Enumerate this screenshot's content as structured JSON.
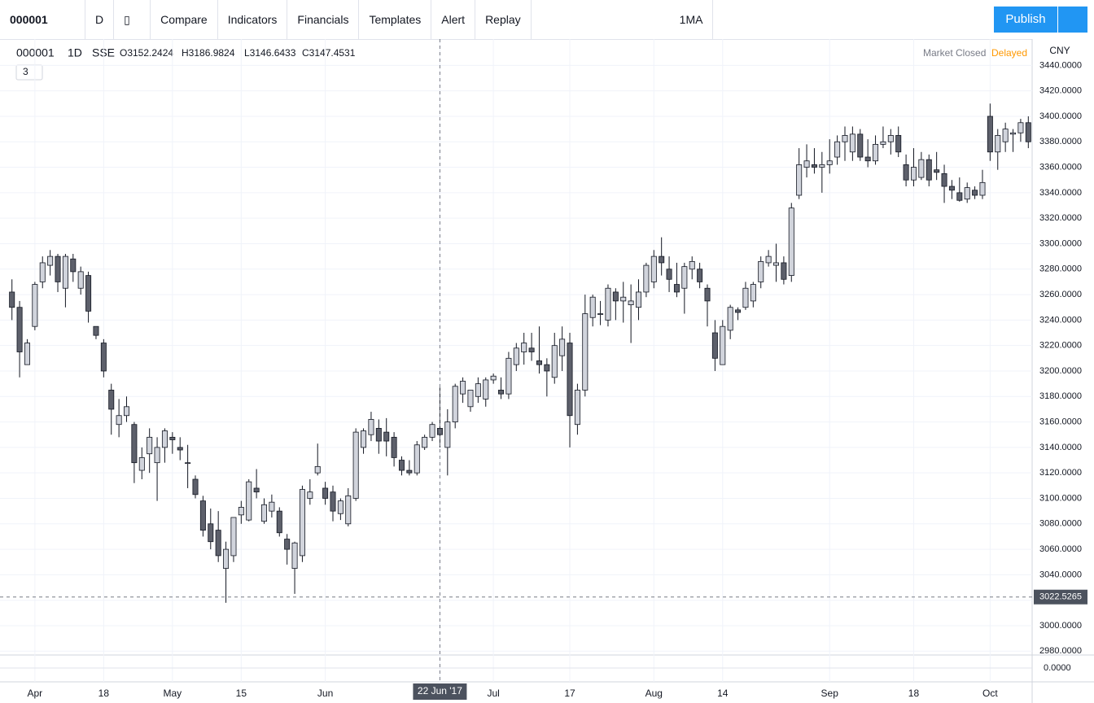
{
  "toolbar": {
    "symbol": "000001",
    "interval": "D",
    "compare": "Compare",
    "indicators": "Indicators",
    "financials": "Financials",
    "templates": "Templates",
    "alert": "Alert",
    "replay": "Replay",
    "layout": "1MA",
    "publish": "Publish"
  },
  "legend": {
    "symbol": "000001",
    "interval": "1D",
    "exchange": "SSE",
    "open": "O3152.2424",
    "high": "H3186.9824",
    "low": "L3146.6433",
    "close": "C3147.4531",
    "collapsed_count": "3",
    "status": "Market Closed",
    "delayed": "Delayed",
    "currency": "CNY"
  },
  "chart_data": {
    "type": "candlestick",
    "categories": [
      null,
      null,
      null,
      "Apr",
      null,
      null,
      null,
      null,
      null,
      null,
      null,
      null,
      "18",
      null,
      null,
      null,
      null,
      null,
      null,
      null,
      null,
      "May",
      null,
      null,
      null,
      null,
      null,
      null,
      null,
      null,
      "15",
      null,
      null,
      null,
      null,
      null,
      null,
      null,
      null,
      null,
      null,
      "Jun",
      null,
      null,
      null,
      null,
      null,
      null,
      null,
      null,
      null,
      null,
      null,
      null,
      null,
      null,
      "22 Jun '17",
      null,
      null,
      null,
      null,
      null,
      null,
      "Jul",
      null,
      null,
      null,
      null,
      null,
      null,
      null,
      null,
      null,
      "17",
      null,
      null,
      null,
      null,
      null,
      null,
      null,
      null,
      null,
      null,
      "Aug",
      null,
      null,
      null,
      null,
      null,
      null,
      null,
      null,
      "14",
      null,
      null,
      null,
      null,
      null,
      null,
      null,
      null,
      null,
      null,
      null,
      null,
      null,
      "Sep",
      null,
      null,
      null,
      null,
      null,
      null,
      null,
      null,
      null,
      null,
      "18",
      null,
      null,
      null,
      null,
      null,
      null,
      null,
      null,
      null,
      "Oct",
      null,
      null,
      null,
      null,
      null
    ],
    "ohlc": [
      [
        3262,
        3272,
        3240,
        3250
      ],
      [
        3250,
        3255,
        3195,
        3215
      ],
      [
        3205,
        3225,
        3205,
        3222
      ],
      [
        3235,
        3270,
        3232,
        3268
      ],
      [
        3270,
        3290,
        3265,
        3285
      ],
      [
        3283,
        3295,
        3275,
        3290
      ],
      [
        3290,
        3292,
        3262,
        3270
      ],
      [
        3265,
        3292,
        3250,
        3290
      ],
      [
        3288,
        3292,
        3270,
        3278
      ],
      [
        3265,
        3282,
        3260,
        3278
      ],
      [
        3275,
        3278,
        3238,
        3247
      ],
      [
        3235,
        3235,
        3225,
        3228
      ],
      [
        3222,
        3225,
        3195,
        3200
      ],
      [
        3185,
        3190,
        3150,
        3170
      ],
      [
        3158,
        3178,
        3148,
        3165
      ],
      [
        3165,
        3180,
        3160,
        3172
      ],
      [
        3158,
        3160,
        3112,
        3128
      ],
      [
        3122,
        3140,
        3115,
        3132
      ],
      [
        3135,
        3155,
        3120,
        3148
      ],
      [
        3128,
        3148,
        3098,
        3140
      ],
      [
        3140,
        3155,
        3128,
        3153
      ],
      [
        3148,
        3152,
        3135,
        3146
      ],
      [
        3140,
        3148,
        3130,
        3138
      ],
      [
        3128,
        3142,
        3108,
        3128
      ],
      [
        3115,
        3118,
        3100,
        3103
      ],
      [
        3098,
        3102,
        3070,
        3075
      ],
      [
        3080,
        3092,
        3060,
        3066
      ],
      [
        3075,
        3090,
        3050,
        3055
      ],
      [
        3045,
        3066,
        3018,
        3060
      ],
      [
        3055,
        3085,
        3050,
        3085
      ],
      [
        3087,
        3098,
        3080,
        3093
      ],
      [
        3083,
        3115,
        3082,
        3113
      ],
      [
        3108,
        3123,
        3100,
        3105
      ],
      [
        3082,
        3100,
        3080,
        3095
      ],
      [
        3090,
        3103,
        3085,
        3097
      ],
      [
        3090,
        3093,
        3070,
        3073
      ],
      [
        3068,
        3072,
        3048,
        3060
      ],
      [
        3045,
        3066,
        3025,
        3065
      ],
      [
        3055,
        3110,
        3050,
        3107
      ],
      [
        3100,
        3115,
        3095,
        3105
      ],
      [
        3120,
        3143,
        3118,
        3125
      ],
      [
        3108,
        3113,
        3095,
        3100
      ],
      [
        3105,
        3110,
        3082,
        3090
      ],
      [
        3088,
        3100,
        3083,
        3098
      ],
      [
        3080,
        3108,
        3078,
        3102
      ],
      [
        3100,
        3155,
        3098,
        3152
      ],
      [
        3140,
        3155,
        3135,
        3153
      ],
      [
        3150,
        3168,
        3145,
        3162
      ],
      [
        3155,
        3162,
        3135,
        3145
      ],
      [
        3152,
        3163,
        3133,
        3145
      ],
      [
        3148,
        3152,
        3125,
        3132
      ],
      [
        3130,
        3133,
        3118,
        3122
      ],
      [
        3122,
        3130,
        3118,
        3120
      ],
      [
        3120,
        3145,
        3118,
        3142
      ],
      [
        3140,
        3150,
        3138,
        3148
      ],
      [
        3148,
        3160,
        3145,
        3158
      ],
      [
        3155,
        3187,
        3140,
        3150
      ],
      [
        3140,
        3170,
        3118,
        3160
      ],
      [
        3160,
        3190,
        3155,
        3188
      ],
      [
        3182,
        3195,
        3175,
        3192
      ],
      [
        3172,
        3185,
        3168,
        3185
      ],
      [
        3180,
        3195,
        3175,
        3190
      ],
      [
        3178,
        3195,
        3172,
        3193
      ],
      [
        3193,
        3198,
        3190,
        3196
      ],
      [
        3185,
        3195,
        3178,
        3182
      ],
      [
        3182,
        3215,
        3178,
        3210
      ],
      [
        3205,
        3222,
        3200,
        3218
      ],
      [
        3215,
        3230,
        3205,
        3222
      ],
      [
        3218,
        3230,
        3208,
        3215
      ],
      [
        3208,
        3235,
        3198,
        3205
      ],
      [
        3205,
        3210,
        3180,
        3200
      ],
      [
        3195,
        3230,
        3190,
        3220
      ],
      [
        3212,
        3235,
        3200,
        3225
      ],
      [
        3222,
        3230,
        3140,
        3165
      ],
      [
        3158,
        3190,
        3150,
        3185
      ],
      [
        3185,
        3260,
        3180,
        3245
      ],
      [
        3242,
        3260,
        3235,
        3258
      ],
      [
        3245,
        3255,
        3236,
        3245
      ],
      [
        3240,
        3268,
        3235,
        3265
      ],
      [
        3262,
        3265,
        3240,
        3255
      ],
      [
        3255,
        3270,
        3238,
        3258
      ],
      [
        3252,
        3268,
        3222,
        3255
      ],
      [
        3250,
        3272,
        3240,
        3262
      ],
      [
        3262,
        3285,
        3258,
        3283
      ],
      [
        3270,
        3295,
        3265,
        3290
      ],
      [
        3290,
        3305,
        3275,
        3285
      ],
      [
        3280,
        3290,
        3262,
        3272
      ],
      [
        3268,
        3285,
        3258,
        3262
      ],
      [
        3265,
        3285,
        3245,
        3282
      ],
      [
        3280,
        3290,
        3272,
        3286
      ],
      [
        3280,
        3285,
        3265,
        3270
      ],
      [
        3265,
        3268,
        3235,
        3255
      ],
      [
        3230,
        3240,
        3200,
        3210
      ],
      [
        3205,
        3240,
        3205,
        3235
      ],
      [
        3232,
        3252,
        3225,
        3250
      ],
      [
        3248,
        3250,
        3240,
        3246
      ],
      [
        3250,
        3270,
        3248,
        3265
      ],
      [
        3255,
        3270,
        3250,
        3268
      ],
      [
        3270,
        3290,
        3265,
        3286
      ],
      [
        3285,
        3295,
        3282,
        3290
      ],
      [
        3283,
        3300,
        3270,
        3285
      ],
      [
        3285,
        3290,
        3268,
        3272
      ],
      [
        3275,
        3332,
        3270,
        3328
      ],
      [
        3338,
        3375,
        3335,
        3362
      ],
      [
        3360,
        3378,
        3352,
        3365
      ],
      [
        3362,
        3375,
        3355,
        3360
      ],
      [
        3360,
        3372,
        3340,
        3362
      ],
      [
        3362,
        3382,
        3355,
        3365
      ],
      [
        3368,
        3385,
        3362,
        3380
      ],
      [
        3380,
        3392,
        3365,
        3385
      ],
      [
        3372,
        3392,
        3365,
        3386
      ],
      [
        3386,
        3390,
        3365,
        3368
      ],
      [
        3368,
        3382,
        3360,
        3365
      ],
      [
        3365,
        3385,
        3362,
        3378
      ],
      [
        3378,
        3392,
        3375,
        3380
      ],
      [
        3380,
        3390,
        3370,
        3385
      ],
      [
        3385,
        3392,
        3368,
        3372
      ],
      [
        3362,
        3370,
        3345,
        3350
      ],
      [
        3350,
        3375,
        3345,
        3360
      ],
      [
        3352,
        3372,
        3350,
        3366
      ],
      [
        3366,
        3370,
        3345,
        3350
      ],
      [
        3358,
        3372,
        3350,
        3356
      ],
      [
        3355,
        3362,
        3332,
        3345
      ],
      [
        3345,
        3350,
        3335,
        3342
      ],
      [
        3340,
        3352,
        3333,
        3334
      ],
      [
        3335,
        3348,
        3332,
        3344
      ],
      [
        3342,
        3345,
        3335,
        3338
      ],
      [
        3338,
        3358,
        3335,
        3348
      ],
      [
        3400,
        3410,
        3365,
        3372
      ],
      [
        3372,
        3390,
        3358,
        3385
      ],
      [
        3380,
        3395,
        3372,
        3390
      ],
      [
        3386,
        3390,
        3372,
        3387
      ],
      [
        3387,
        3398,
        3380,
        3395
      ],
      [
        3395,
        3400,
        3375,
        3380
      ]
    ],
    "up_color": "#d1d4dc",
    "down_color": "#5d606b",
    "wick_color": "#131722",
    "ylim": [
      2977,
      3453
    ],
    "yticks": [
      {
        "value": 2980,
        "label": "2980.0000"
      },
      {
        "value": 3000,
        "label": "3000.0000"
      },
      {
        "value": 3020,
        "label": "3020.0000"
      },
      {
        "value": 3040,
        "label": "3040.0000"
      },
      {
        "value": 3060,
        "label": "3060.0000"
      },
      {
        "value": 3080,
        "label": "3080.0000"
      },
      {
        "value": 3100,
        "label": "3100.0000"
      },
      {
        "value": 3120,
        "label": "3120.0000"
      },
      {
        "value": 3140,
        "label": "3140.0000"
      },
      {
        "value": 3160,
        "label": "3160.0000"
      },
      {
        "value": 3180,
        "label": "3180.0000"
      },
      {
        "value": 3200,
        "label": "3200.0000"
      },
      {
        "value": 3220,
        "label": "3220.0000"
      },
      {
        "value": 3240,
        "label": "3240.0000"
      },
      {
        "value": 3260,
        "label": "3260.0000"
      },
      {
        "value": 3280,
        "label": "3280.0000"
      },
      {
        "value": 3300,
        "label": "3300.0000"
      },
      {
        "value": 3320,
        "label": "3320.0000"
      },
      {
        "value": 3340,
        "label": "3340.0000"
      },
      {
        "value": 3360,
        "label": "3360.0000"
      },
      {
        "value": 3380,
        "label": "3380.0000"
      },
      {
        "value": 3400,
        "label": "3400.0000"
      },
      {
        "value": 3420,
        "label": "3420.0000"
      },
      {
        "value": 3440,
        "label": "3440.0000"
      }
    ],
    "grid": true,
    "crosshair_price": 3022.5265,
    "indicator_zero": {
      "value": 0,
      "label": "0.0000"
    }
  }
}
